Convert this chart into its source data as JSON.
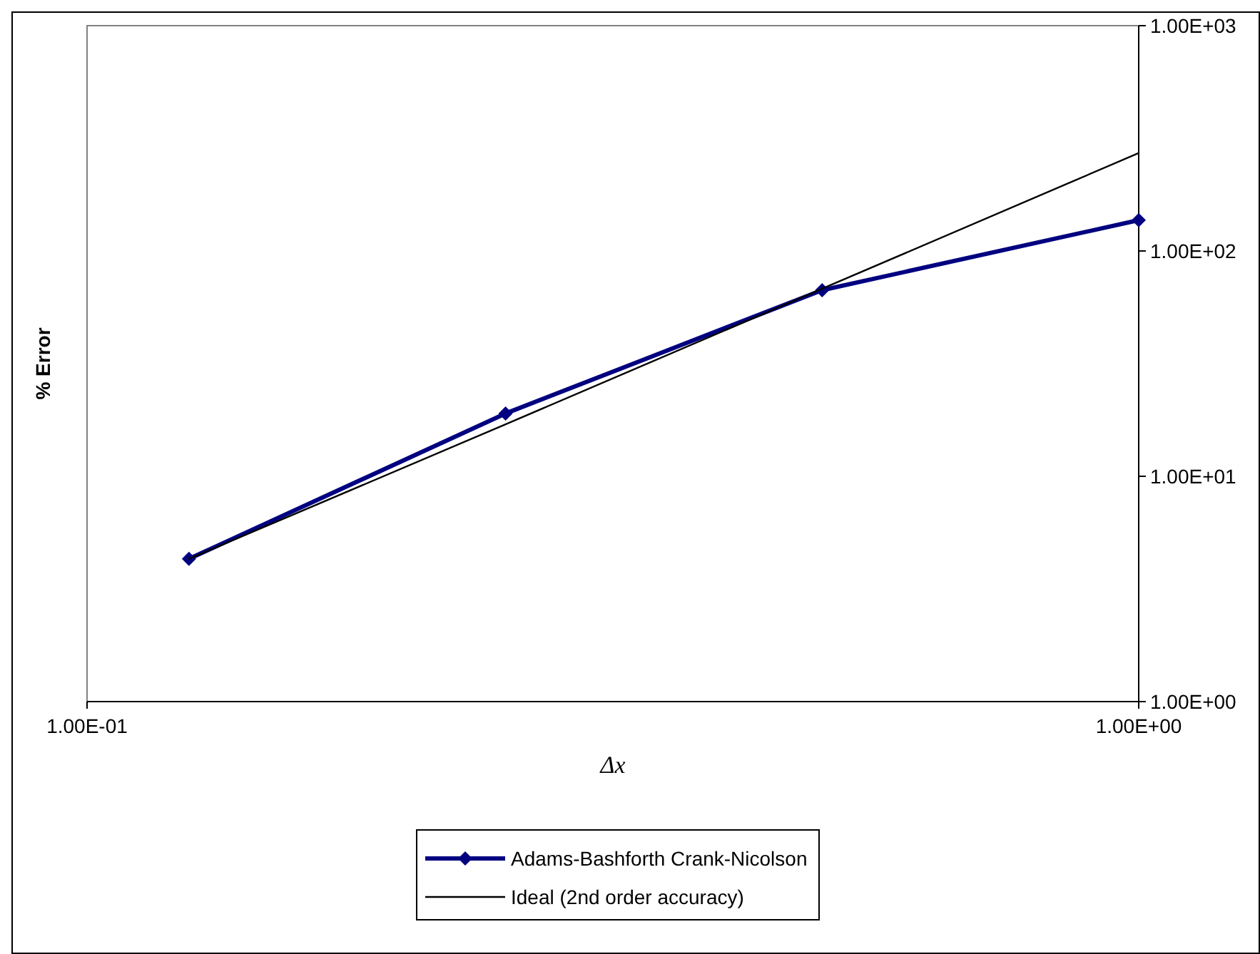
{
  "chart_data": {
    "type": "line",
    "xlabel": "Δx",
    "ylabel": "% Error",
    "log": "xy",
    "xlim": [
      0.1,
      1
    ],
    "xticks": [
      {
        "value": 0.1,
        "label": "1.00E-01"
      },
      {
        "value": 1,
        "label": "1.00E+00"
      }
    ],
    "ylim": [
      1,
      1000
    ],
    "yticks": [
      {
        "value": 1,
        "label": "1.00E+00"
      },
      {
        "value": 10,
        "label": "1.00E+01"
      },
      {
        "value": 100,
        "label": "1.00E+02"
      },
      {
        "value": 1000,
        "label": "1.00E+03"
      }
    ],
    "grid": false,
    "legend": "bottom",
    "series": [
      {
        "name": "Adams-Bashforth Crank-Nicolson",
        "color": "#000080",
        "x": [
          0.125,
          0.25,
          0.5,
          1
        ],
        "values": [
          4.3,
          19,
          67,
          137
        ],
        "marker": "diamond",
        "line_style": "solid"
      },
      {
        "name": "Ideal (2nd order accuracy)",
        "color": "#000000",
        "x": [
          0.125,
          0.25,
          0.5,
          1
        ],
        "values": [
          4.3,
          17,
          68,
          272
        ],
        "marker": "none",
        "line_style": "solid"
      }
    ]
  }
}
